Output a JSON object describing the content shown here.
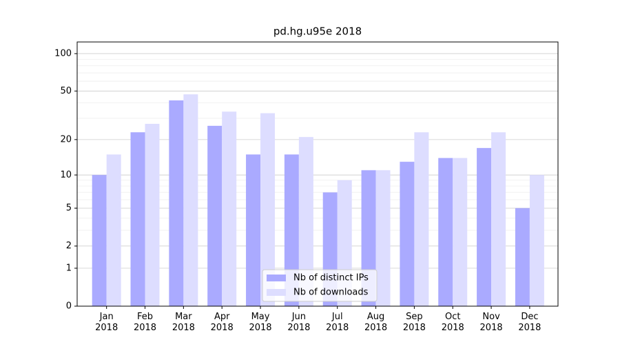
{
  "chart_data": {
    "type": "bar",
    "title": "pd.hg.u95e 2018",
    "categories": [
      "Jan 2018",
      "Feb 2018",
      "Mar 2018",
      "Apr 2018",
      "May 2018",
      "Jun 2018",
      "Jul 2018",
      "Aug 2018",
      "Sep 2018",
      "Oct 2018",
      "Nov 2018",
      "Dec 2018"
    ],
    "series": [
      {
        "name": "Nb of distinct IPs",
        "color": "#aaaaff",
        "values": [
          10,
          23,
          42,
          26,
          15,
          15,
          7,
          11,
          13,
          14,
          17,
          5
        ]
      },
      {
        "name": "Nb of downloads",
        "color": "#ddddff",
        "values": [
          15,
          27,
          47,
          34,
          33,
          21,
          9,
          11,
          23,
          14,
          23,
          10
        ]
      }
    ],
    "yscale": "log1p",
    "ylim": [
      0,
      124
    ],
    "yticks": [
      0,
      1,
      2,
      5,
      10,
      20,
      50,
      100
    ],
    "minor_yticks": [
      3,
      4,
      6,
      7,
      8,
      9,
      30,
      40,
      60,
      70,
      80,
      90
    ],
    "grid": true,
    "legend_loc": "lower center"
  }
}
